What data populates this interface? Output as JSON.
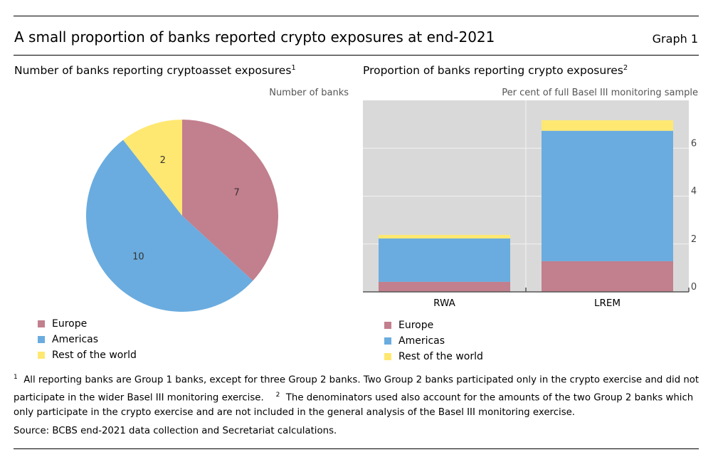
{
  "header": {
    "title": "A small proportion of banks reported crypto exposures at end-2021",
    "graph_label": "Graph 1"
  },
  "colors": {
    "Europe": "#c27f8d",
    "Americas": "#6aacdf",
    "Rest of the world": "#ffe872",
    "plot_bg": "#d9d9d9"
  },
  "chart_data": [
    {
      "type": "pie",
      "title": "Number of banks reporting cryptoasset exposures",
      "title_footnote": "1",
      "unit_label": "Number of banks",
      "categories": [
        "Europe",
        "Americas",
        "Rest of the world"
      ],
      "values": [
        7,
        10,
        2
      ],
      "data_labels": [
        "7",
        "10",
        "2"
      ],
      "legend": [
        "Europe",
        "Americas",
        "Rest of the world"
      ],
      "legend_placement": "bottom-left"
    },
    {
      "type": "bar",
      "stacked": true,
      "title": "Proportion of banks reporting crypto exposures",
      "title_footnote": "2",
      "unit_label": "Per cent of full Basel III monitoring sample",
      "categories": [
        "RWA",
        "LREM"
      ],
      "series": [
        {
          "name": "Europe",
          "values": [
            0.42,
            1.28
          ]
        },
        {
          "name": "Americas",
          "values": [
            1.81,
            5.45
          ]
        },
        {
          "name": "Rest of the world",
          "values": [
            0.15,
            0.44
          ]
        }
      ],
      "ylim": [
        0,
        8
      ],
      "yticks": [
        "0",
        "2",
        "4",
        "6"
      ],
      "y_axis_side": "right",
      "grid": true,
      "legend": [
        "Europe",
        "Americas",
        "Rest of the world"
      ],
      "legend_placement": "bottom-left"
    }
  ],
  "footnotes": {
    "n1": "1",
    "t1": "All reporting banks are Group 1 banks, except for three Group 2 banks. Two Group 2 banks participated only in the crypto exercise and did not participate in the wider Basel III monitoring exercise.",
    "n2": "2",
    "t2": "The denominators used also account for the amounts of the two Group 2 banks which only participate in the crypto exercise and are not included in the general analysis of the Basel III monitoring exercise."
  },
  "source": "Source: BCBS end-2021 data collection and Secretariat calculations."
}
